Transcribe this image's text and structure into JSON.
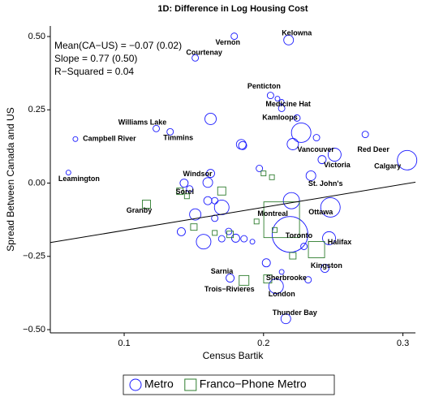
{
  "chart_data": {
    "type": "scatter",
    "title": "1D: Difference in Log Housing Cost",
    "x_label": "Census Bartik",
    "y_label": "Spread Between Canada and US",
    "annotations": [
      "Mean(CA−US) = −0.07 (0.02)",
      "Slope = 0.77 (0.50)",
      "R−Squared = 0.04"
    ],
    "xlim": [
      0.047,
      0.309
    ],
    "ylim": [
      -0.511,
      0.536
    ],
    "xticks": [
      0.1,
      0.2,
      0.3
    ],
    "yticks": [
      {
        "value": 0.5,
        "label": "0.50"
      },
      {
        "value": 0.25,
        "label": "0.25"
      },
      {
        "value": 0,
        "label": "0.00"
      },
      {
        "value": -0.25,
        "label": "−0.25"
      },
      {
        "value": -0.5,
        "label": "−0.50"
      }
    ],
    "legend": "bottom",
    "fit_line": {
      "color": "#000000",
      "x": [
        0.047,
        0.309
      ],
      "values": [
        -0.203,
        0.003
      ]
    },
    "series": [
      {
        "name": "Metro",
        "marker": "circle",
        "color": "#1a1aff",
        "x": [
          0.218,
          0.179,
          0.151,
          0.205,
          0.213,
          0.224,
          0.123,
          0.133,
          0.065,
          0.06,
          0.227,
          0.273,
          0.303,
          0.251,
          0.234,
          0.162,
          0.248,
          0.219,
          0.247,
          0.244,
          0.176,
          0.209,
          0.216,
          0.162,
          0.21,
          0.213,
          0.184,
          0.185,
          0.221,
          0.238,
          0.242,
          0.197,
          0.143,
          0.16,
          0.17,
          0.151,
          0.16,
          0.165,
          0.157,
          0.141,
          0.17,
          0.18,
          0.186,
          0.175,
          0.192,
          0.22,
          0.202,
          0.232,
          0.165,
          0.213,
          0.229,
          0.147
        ],
        "values": [
          0.488,
          0.501,
          0.427,
          0.299,
          0.255,
          0.222,
          0.186,
          0.175,
          0.15,
          0.036,
          0.172,
          0.166,
          0.078,
          0.097,
          0.025,
          0.033,
          -0.083,
          -0.175,
          -0.188,
          -0.291,
          -0.324,
          -0.352,
          -0.463,
          0.219,
          0.288,
          0.277,
          0.132,
          0.128,
          0.133,
          0.155,
          0.08,
          0.05,
          0.0,
          0.002,
          -0.083,
          -0.107,
          -0.06,
          -0.06,
          -0.2,
          -0.166,
          -0.19,
          -0.188,
          -0.19,
          -0.165,
          -0.2,
          -0.06,
          -0.272,
          -0.33,
          -0.12,
          -0.303,
          -0.216,
          -0.02
        ],
        "sizes": [
          6,
          4,
          4,
          4,
          4,
          4,
          4,
          4,
          3,
          3,
          12,
          4,
          12,
          8,
          6,
          5,
          12,
          22,
          8,
          5,
          5,
          9,
          6,
          7,
          3,
          3,
          6,
          5,
          7,
          4,
          5,
          4,
          5,
          6,
          9,
          7,
          5,
          4,
          9,
          5,
          4,
          5,
          4,
          4,
          3,
          10,
          5,
          4,
          4,
          3,
          4,
          4
        ],
        "labels": [
          "Kelowna",
          "Vernon",
          "Courtenay",
          "Penticton",
          "Medicine Hat",
          "Kamloops",
          "Williams Lake",
          "Timmins",
          "Campbell River",
          "Leamington",
          "Vancouver",
          "Red Deer",
          "Calgary",
          "Victoria",
          "St. John's",
          "Windsor",
          "Ottawa",
          "Toronto",
          "Halifax",
          "Kingston",
          "Sarnia",
          "London",
          "Thunder Bay",
          null,
          null,
          null,
          null,
          null,
          null,
          null,
          null,
          null,
          null,
          null,
          null,
          null,
          null,
          null,
          null,
          null,
          null,
          null,
          null,
          null,
          null,
          null,
          null,
          null,
          null,
          null,
          null,
          null
        ]
      },
      {
        "name": "Franco−Phone Metro",
        "marker": "square",
        "color": "#2e7d2e",
        "x": [
          0.14,
          0.116,
          0.213,
          0.203,
          0.186,
          0.238,
          0.17,
          0.2,
          0.206,
          0.145,
          0.15,
          0.176,
          0.165,
          0.221,
          0.195,
          0.208
        ],
        "values": [
          -0.028,
          -0.072,
          -0.125,
          -0.327,
          -0.332,
          -0.227,
          -0.027,
          0.033,
          0.02,
          -0.045,
          -0.15,
          -0.175,
          -0.17,
          -0.248,
          -0.131,
          -0.16
        ],
        "sizes": [
          4,
          5,
          22,
          5,
          6,
          10,
          5,
          3,
          3,
          3,
          4,
          4,
          3,
          4,
          3,
          3
        ],
        "labels": [
          "Sorel",
          "Granby",
          "Montreal",
          "Sherbrooke",
          "Trois−Rivieres",
          null,
          null,
          null,
          null,
          null,
          null,
          null,
          null,
          null,
          null,
          null
        ]
      }
    ]
  }
}
